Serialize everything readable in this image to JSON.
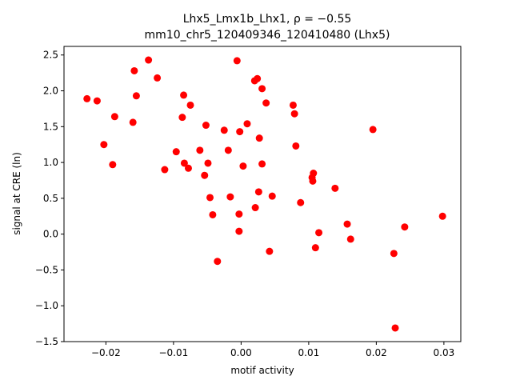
{
  "chart_data": {
    "type": "scatter",
    "title_line1": "Lhx5_Lmx1b_Lhx1, ρ = −0.55",
    "title_line2": "mm10_chr5_120409346_120410480 (Lhx5)",
    "xlabel": "motif activity",
    "ylabel": "signal at CRE (ln)",
    "xlim": [
      -0.0262,
      0.0325
    ],
    "ylim": [
      -1.5,
      2.62
    ],
    "xticks": [
      -0.02,
      -0.01,
      0.0,
      0.01,
      0.02,
      0.03
    ],
    "xtick_labels": [
      "−0.02",
      "−0.01",
      "0.00",
      "0.01",
      "0.02",
      "0.03"
    ],
    "yticks": [
      -1.5,
      -1.0,
      -0.5,
      0.0,
      0.5,
      1.0,
      1.5,
      2.0,
      2.5
    ],
    "ytick_labels": [
      "−1.5",
      "−1.0",
      "−0.5",
      "0.0",
      "0.5",
      "1.0",
      "1.5",
      "2.0",
      "2.5"
    ],
    "grid": false,
    "marker_color": "#ff0000",
    "points": [
      [
        -0.0228,
        1.89
      ],
      [
        -0.0213,
        1.86
      ],
      [
        -0.0203,
        1.25
      ],
      [
        -0.0187,
        1.64
      ],
      [
        -0.019,
        0.97
      ],
      [
        -0.016,
        1.56
      ],
      [
        -0.0158,
        2.28
      ],
      [
        -0.0155,
        1.93
      ],
      [
        -0.0137,
        2.43
      ],
      [
        -0.0124,
        2.18
      ],
      [
        -0.0113,
        0.9
      ],
      [
        -0.0096,
        1.15
      ],
      [
        -0.0087,
        1.63
      ],
      [
        -0.0085,
        1.94
      ],
      [
        -0.0084,
        0.99
      ],
      [
        -0.0078,
        0.92
      ],
      [
        -0.0075,
        1.8
      ],
      [
        -0.0061,
        1.17
      ],
      [
        -0.0054,
        0.82
      ],
      [
        -0.0052,
        1.52
      ],
      [
        -0.0049,
        0.99
      ],
      [
        -0.0046,
        0.51
      ],
      [
        -0.0042,
        0.27
      ],
      [
        -0.0035,
        -0.38
      ],
      [
        -0.0025,
        1.45
      ],
      [
        -0.0019,
        1.17
      ],
      [
        -0.0016,
        0.52
      ],
      [
        -0.0006,
        2.42
      ],
      [
        -0.0003,
        0.04
      ],
      [
        -0.0003,
        0.28
      ],
      [
        -0.0002,
        1.43
      ],
      [
        0.0003,
        0.95
      ],
      [
        0.0009,
        1.54
      ],
      [
        0.002,
        2.14
      ],
      [
        0.0021,
        0.37
      ],
      [
        0.0024,
        2.17
      ],
      [
        0.0026,
        0.59
      ],
      [
        0.0027,
        1.34
      ],
      [
        0.0031,
        0.98
      ],
      [
        0.0031,
        2.03
      ],
      [
        0.0037,
        1.83
      ],
      [
        0.0042,
        -0.24
      ],
      [
        0.0046,
        0.53
      ],
      [
        0.0077,
        1.8
      ],
      [
        0.0079,
        1.68
      ],
      [
        0.0081,
        1.23
      ],
      [
        0.0088,
        0.44
      ],
      [
        0.0105,
        0.79
      ],
      [
        0.0106,
        0.74
      ],
      [
        0.0107,
        0.85
      ],
      [
        0.011,
        -0.19
      ],
      [
        0.0115,
        0.02
      ],
      [
        0.0139,
        0.64
      ],
      [
        0.0157,
        0.14
      ],
      [
        0.0162,
        -0.07
      ],
      [
        0.0195,
        1.46
      ],
      [
        0.0226,
        -0.27
      ],
      [
        0.0228,
        -1.31
      ],
      [
        0.0242,
        0.1
      ],
      [
        0.0298,
        0.25
      ]
    ]
  }
}
